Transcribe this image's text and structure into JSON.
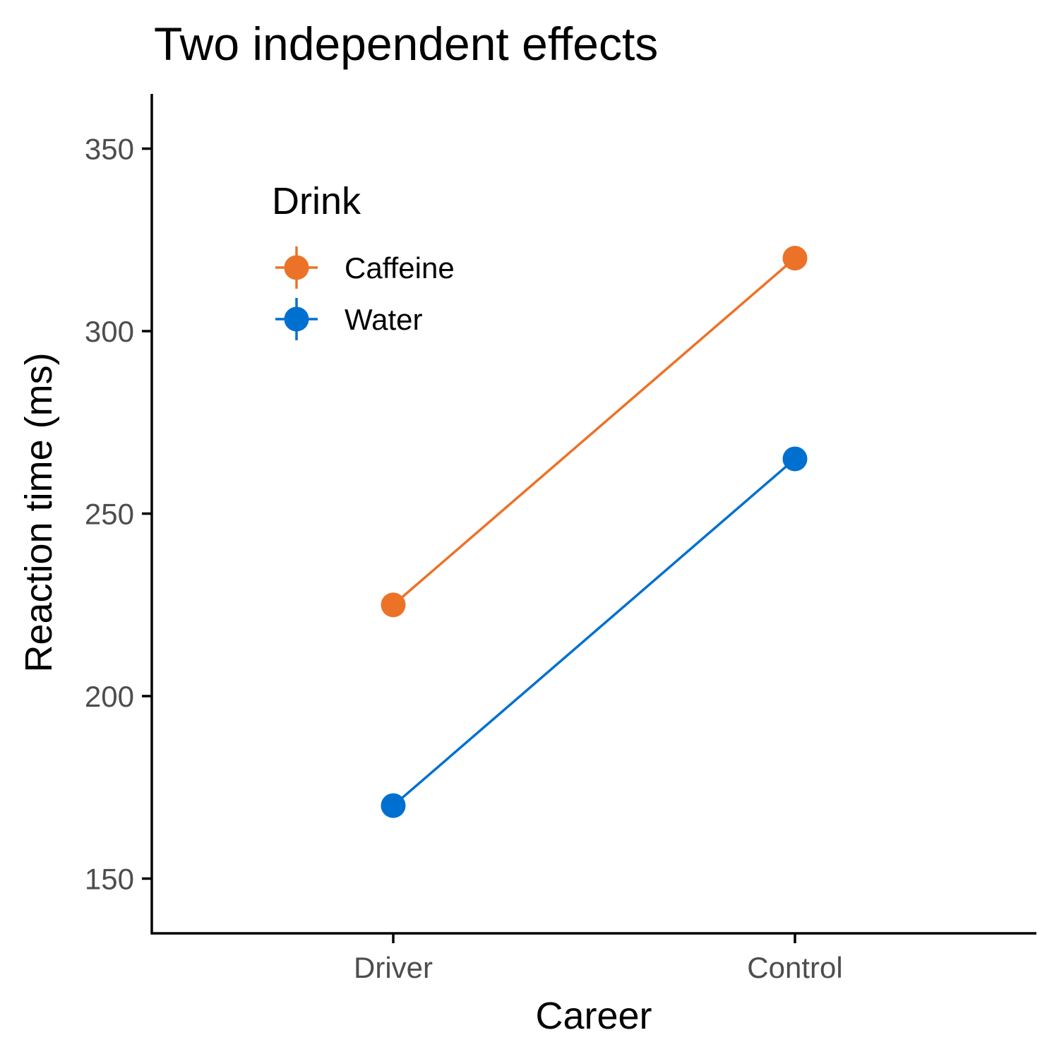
{
  "chart_data": {
    "type": "line",
    "title": "Two independent effects",
    "xlabel": "Career",
    "ylabel": "Reaction time (ms)",
    "categories": [
      "Driver",
      "Control"
    ],
    "ylim": [
      135,
      365
    ],
    "yticks": [
      150,
      200,
      250,
      300,
      350
    ],
    "grid": false,
    "legend": {
      "title": "Drink",
      "placement": "top-left"
    },
    "series": [
      {
        "name": "Caffeine",
        "color": "#ec7228",
        "values": [
          225,
          320
        ]
      },
      {
        "name": "Water",
        "color": "#0070d0",
        "values": [
          170,
          265
        ]
      }
    ]
  }
}
